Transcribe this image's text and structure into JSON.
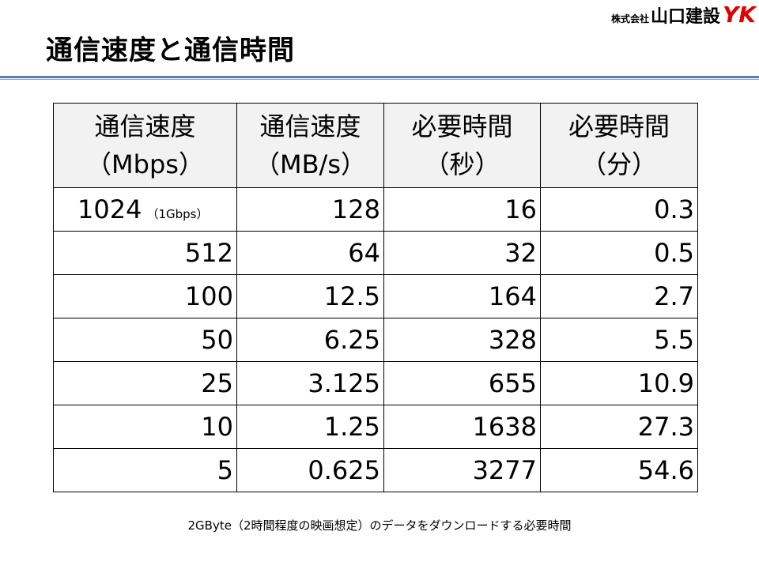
{
  "header": {
    "title": "通信速度と通信時間",
    "logo": {
      "company_prefix": "株式会社",
      "company_name": "山口建設",
      "mark": "YK"
    }
  },
  "table": {
    "columns": [
      [
        "通信速度",
        "（Mbps）"
      ],
      [
        "通信速度",
        "（MB/s）"
      ],
      [
        "必要時間",
        "（秒）"
      ],
      [
        "必要時間",
        "（分）"
      ]
    ],
    "first_row_note": "（1Gbps）",
    "rows": [
      [
        1024,
        128,
        16,
        0.3
      ],
      [
        512,
        64,
        32,
        0.5
      ],
      [
        100,
        12.5,
        164,
        2.7
      ],
      [
        50,
        6.25,
        328,
        5.5
      ],
      [
        25,
        3.125,
        655,
        10.9
      ],
      [
        10,
        1.25,
        1638,
        27.3
      ],
      [
        5,
        0.625,
        3277,
        54.6
      ]
    ]
  },
  "caption": "2GByte（2時間程度の映画想定）のデータをダウンロードする必要時間"
}
